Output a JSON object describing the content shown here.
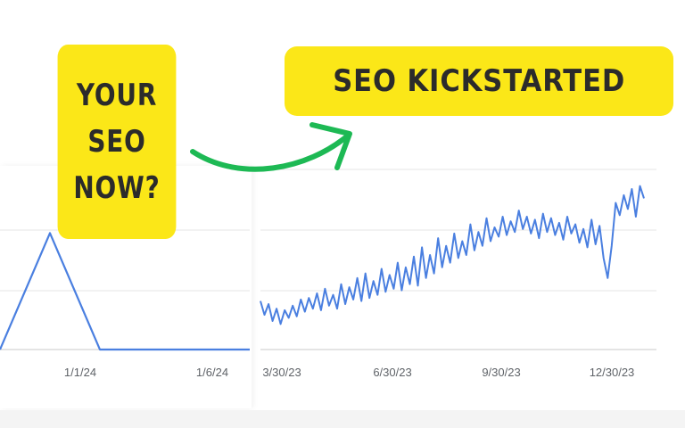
{
  "callouts": {
    "left_lines": [
      "YOUR",
      "SEO",
      "NOW?"
    ],
    "right_text": "SEO KICKSTARTED"
  },
  "colors": {
    "callout_bg": "#fbe718",
    "line": "#4a7fe0",
    "arrow": "#1db954",
    "grid": "#e4e4e4"
  },
  "chart_data": [
    {
      "type": "line",
      "title": "",
      "xlabel": "",
      "ylabel": "",
      "x_ticks": [
        "1/1/24",
        "1/6/24"
      ],
      "x": [
        -4,
        -3,
        -2,
        -1,
        0,
        1,
        2,
        3,
        4,
        5,
        6
      ],
      "values": [
        0,
        0.5,
        1.0,
        0.5,
        0,
        0,
        0,
        0,
        0,
        0,
        0
      ],
      "ylim": [
        0,
        2
      ],
      "grid": true
    },
    {
      "type": "line",
      "title": "",
      "xlabel": "",
      "ylabel": "",
      "x_ticks": [
        "3/30/23",
        "6/30/23",
        "9/30/23",
        "12/30/23"
      ],
      "values": [
        40,
        22,
        36,
        14,
        30,
        10,
        28,
        18,
        34,
        20,
        42,
        26,
        44,
        30,
        50,
        28,
        56,
        34,
        48,
        30,
        62,
        36,
        58,
        42,
        70,
        40,
        76,
        44,
        66,
        48,
        82,
        52,
        74,
        56,
        90,
        54,
        84,
        62,
        98,
        60,
        110,
        70,
        100,
        76,
        122,
        84,
        112,
        90,
        128,
        96,
        118,
        100,
        140,
        106,
        130,
        112,
        148,
        118,
        136,
        124,
        150,
        126,
        144,
        130,
        158,
        134,
        150,
        128,
        146,
        122,
        154,
        130,
        148,
        126,
        142,
        120,
        150,
        128,
        140,
        116,
        134,
        110,
        146,
        114,
        138,
        96,
        70,
        112,
        168,
        152,
        178,
        160,
        186,
        150,
        190,
        174
      ],
      "ylim": [
        0,
        200
      ],
      "grid": true
    }
  ]
}
